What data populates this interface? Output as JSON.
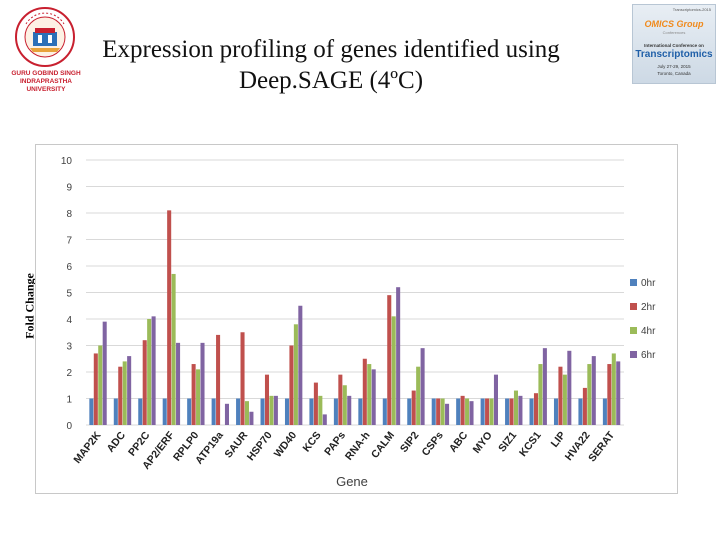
{
  "slide": {
    "title": "Expression profiling of genes identified using Deep.SAGE (4ºC)",
    "university_name": "GURU GOBIND SINGH INDRAPRASTHA UNIVERSITY"
  },
  "conference_banner": {
    "top_line": "Transcriptomics-2015",
    "brand": "OMICS Group",
    "brand_sub": "Conferences",
    "conference_name": "International Conference on",
    "topic": "Transcriptomics",
    "dates": "July 27-29, 2015",
    "location": "Toronto, Canada"
  },
  "colors": {
    "s0": "#4F81BD",
    "s1": "#C0504D",
    "s2": "#9BBB59",
    "s3": "#8064A2",
    "grid": "#d9d9d9"
  },
  "chart_data": {
    "type": "bar",
    "title": "",
    "xlabel": "Gene",
    "ylabel": "Fold Change",
    "ylim": [
      0,
      10
    ],
    "yticks": [
      0,
      1,
      2,
      3,
      4,
      5,
      6,
      7,
      8,
      9,
      10
    ],
    "grid": true,
    "legend_position": "right",
    "categories": [
      "MAP2K",
      "ADC",
      "PP2C",
      "AP2/ERF",
      "RPLP0",
      "ATP19a",
      "SAUR",
      "HSP70",
      "WD40",
      "KCS",
      "PAPs",
      "RNA-h",
      "CALM",
      "SIP2",
      "CSPs",
      "ABC",
      "MYO",
      "SIZ1",
      "KCS1",
      "LIP",
      "HVA22",
      "SERAT"
    ],
    "series": [
      {
        "name": "0hr",
        "values": [
          1,
          1,
          1,
          1,
          1,
          1,
          1,
          1,
          1,
          1,
          1,
          1,
          1,
          1,
          1,
          1,
          1,
          1,
          1,
          1,
          1,
          1
        ]
      },
      {
        "name": "2hr",
        "values": [
          2.7,
          2.2,
          3.2,
          8.1,
          2.3,
          3.4,
          3.5,
          1.9,
          3.0,
          1.6,
          1.9,
          2.5,
          4.9,
          1.3,
          1.0,
          1.1,
          1.0,
          1.0,
          1.2,
          2.2,
          1.4,
          2.3
        ]
      },
      {
        "name": "4hr",
        "values": [
          3.0,
          2.4,
          4.0,
          5.7,
          2.1,
          0,
          0.9,
          1.1,
          3.8,
          1.1,
          1.5,
          2.3,
          4.1,
          2.2,
          1.0,
          1.0,
          1.0,
          1.3,
          2.3,
          1.9,
          2.3,
          2.7
        ]
      },
      {
        "name": "6hr",
        "values": [
          3.9,
          2.6,
          4.1,
          3.1,
          3.1,
          0.8,
          0.5,
          1.1,
          4.5,
          0.4,
          1.1,
          2.1,
          5.2,
          2.9,
          0.8,
          0.9,
          1.9,
          1.1,
          2.9,
          2.8,
          2.6,
          2.4
        ]
      }
    ]
  }
}
